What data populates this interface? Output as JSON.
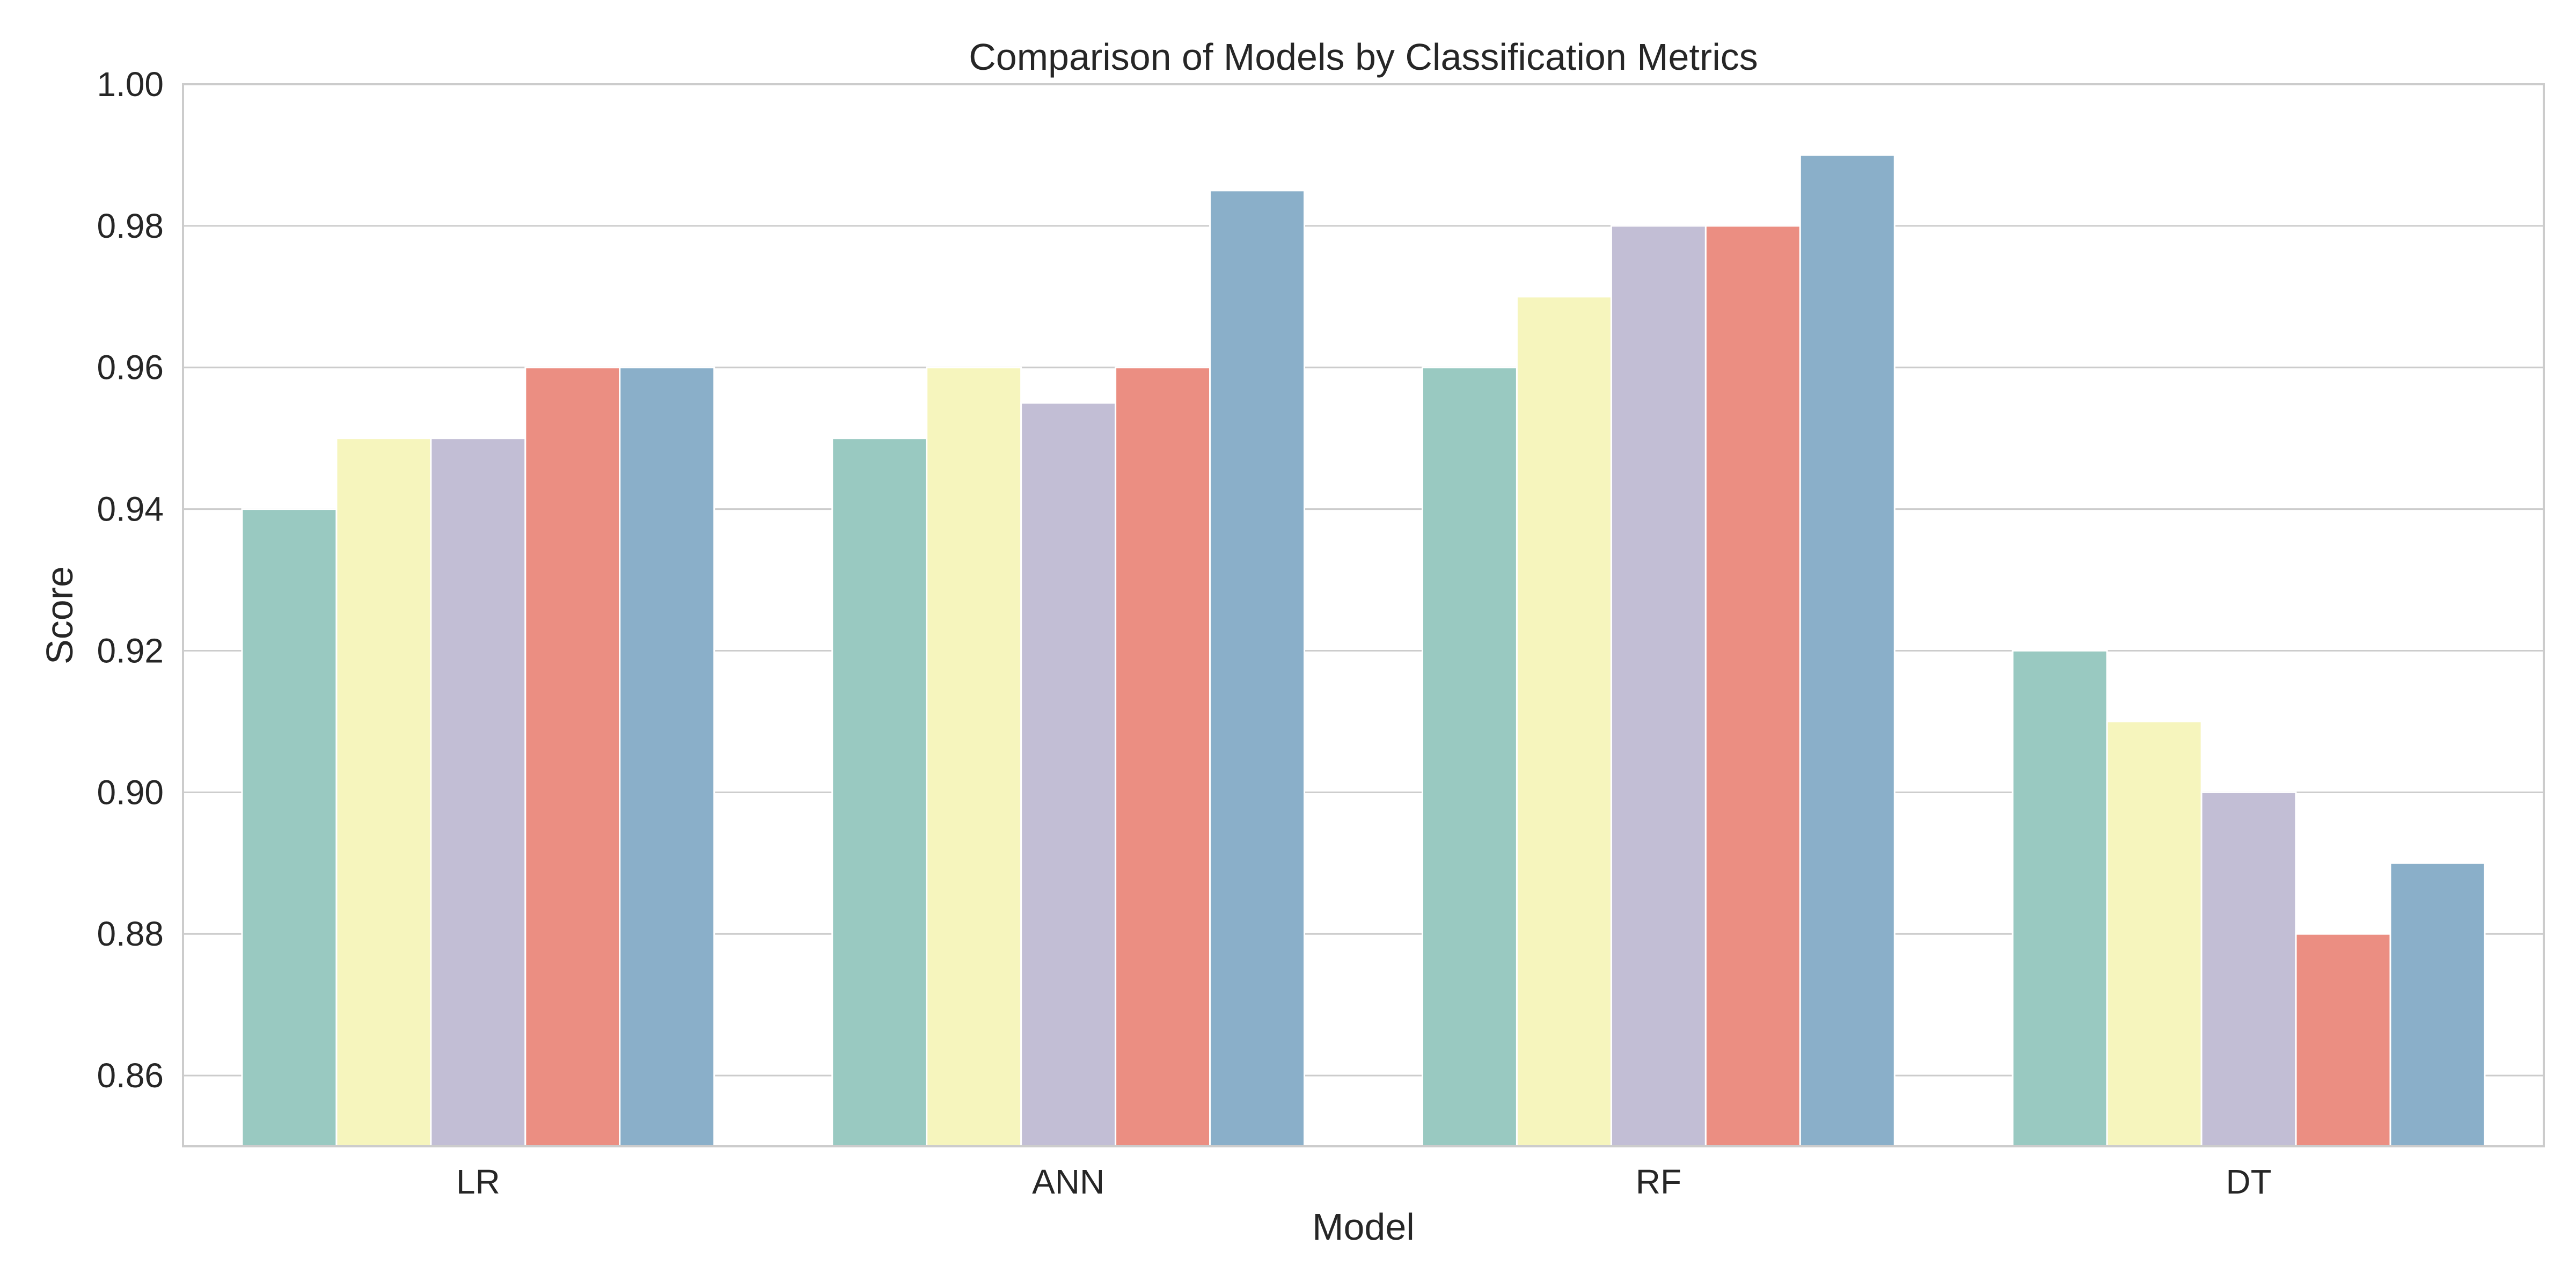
{
  "chart_data": {
    "type": "bar",
    "title": "Comparison of Models by Classification Metrics",
    "xlabel": "Model",
    "ylabel": "Score",
    "ylim": [
      0.85,
      1.0
    ],
    "yticks": [
      "0.86",
      "0.88",
      "0.90",
      "0.92",
      "0.94",
      "0.96",
      "0.98",
      "1.00"
    ],
    "grid": true,
    "legend": "none",
    "categories": [
      "LR",
      "ANN",
      "RF",
      "DT"
    ],
    "series": [
      {
        "values": [
          0.94,
          0.95,
          0.96,
          0.92
        ],
        "color": "#99c9c1"
      },
      {
        "values": [
          0.95,
          0.96,
          0.97,
          0.91
        ],
        "color": "#f6f5bd"
      },
      {
        "values": [
          0.95,
          0.955,
          0.98,
          0.9
        ],
        "color": "#c2bed5"
      },
      {
        "values": [
          0.96,
          0.96,
          0.98,
          0.88
        ],
        "color": "#eb8e82"
      },
      {
        "values": [
          0.96,
          0.985,
          0.99,
          0.89
        ],
        "color": "#8aafc9"
      }
    ]
  }
}
